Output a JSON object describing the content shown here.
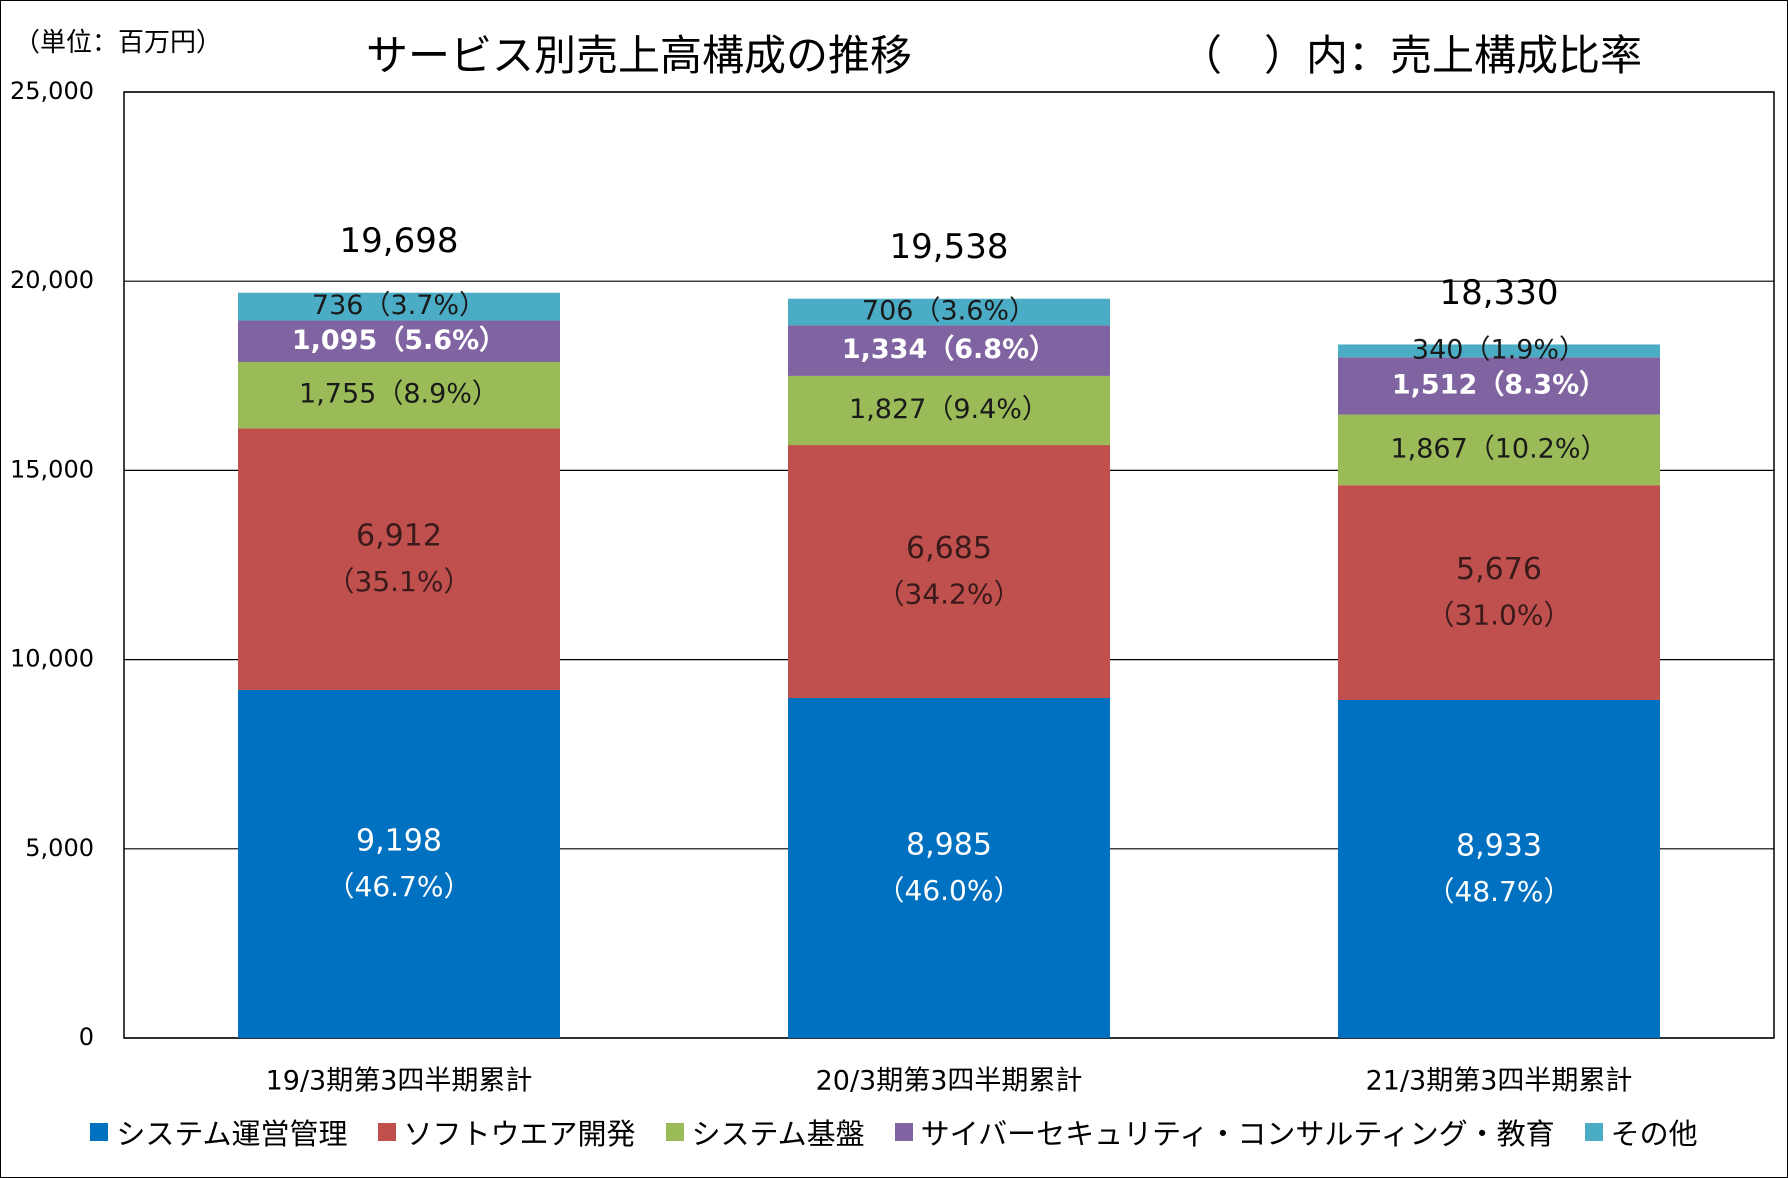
{
  "header": {
    "unit": "（単位：百万円）",
    "title": "サービス別売上高構成の推移",
    "note": "（　）内：売上構成比率"
  },
  "chart_data": {
    "type": "bar",
    "stacked": true,
    "title": "サービス別売上高構成の推移",
    "xlabel": "",
    "ylabel": "",
    "ylim": [
      0,
      25000
    ],
    "yticks": [
      0,
      5000,
      10000,
      15000,
      20000,
      25000
    ],
    "ytick_labels": [
      "0",
      "5,000",
      "10,000",
      "15,000",
      "20,000",
      "25,000"
    ],
    "grid": true,
    "legend_position": "bottom",
    "categories": [
      "19/3期第3四半期累計",
      "20/3期第3四半期累計",
      "21/3期第3四半期累計"
    ],
    "totals": [
      19698,
      19538,
      18330
    ],
    "total_labels": [
      "19,698",
      "19,538",
      "18,330"
    ],
    "series": [
      {
        "name": "システム運営管理",
        "color": "#0070C0",
        "values": [
          9198,
          8985,
          8933
        ],
        "value_labels": [
          "9,198",
          "8,985",
          "8,933"
        ],
        "pct_labels": [
          "（46.7%）",
          "（46.0%）",
          "（48.7%）"
        ]
      },
      {
        "name": "ソフトウエア開発",
        "color": "#C0504D",
        "values": [
          6912,
          6685,
          5676
        ],
        "value_labels": [
          "6,912",
          "6,685",
          "5,676"
        ],
        "pct_labels": [
          "（35.1%）",
          "（34.2%）",
          "（31.0%）"
        ]
      },
      {
        "name": "システム基盤",
        "color": "#9BBB59",
        "values": [
          1755,
          1827,
          1867
        ],
        "value_labels": [
          "1,755",
          "1,827",
          "1,867"
        ],
        "pct_labels": [
          "（8.9%）",
          "（9.4%）",
          "（10.2%）"
        ]
      },
      {
        "name": "サイバーセキュリティ・コンサルティング・教育",
        "color": "#8064A2",
        "values": [
          1095,
          1334,
          1512
        ],
        "value_labels": [
          "1,095",
          "1,334",
          "1,512"
        ],
        "pct_labels": [
          "（5.6%）",
          "（6.8%）",
          "（8.3%）"
        ]
      },
      {
        "name": "その他",
        "color": "#4BACC6",
        "values": [
          736,
          706,
          340
        ],
        "value_labels": [
          "736",
          "706",
          "340"
        ],
        "pct_labels": [
          "（3.7%）",
          "（3.6%）",
          "（1.9%）"
        ]
      }
    ]
  }
}
